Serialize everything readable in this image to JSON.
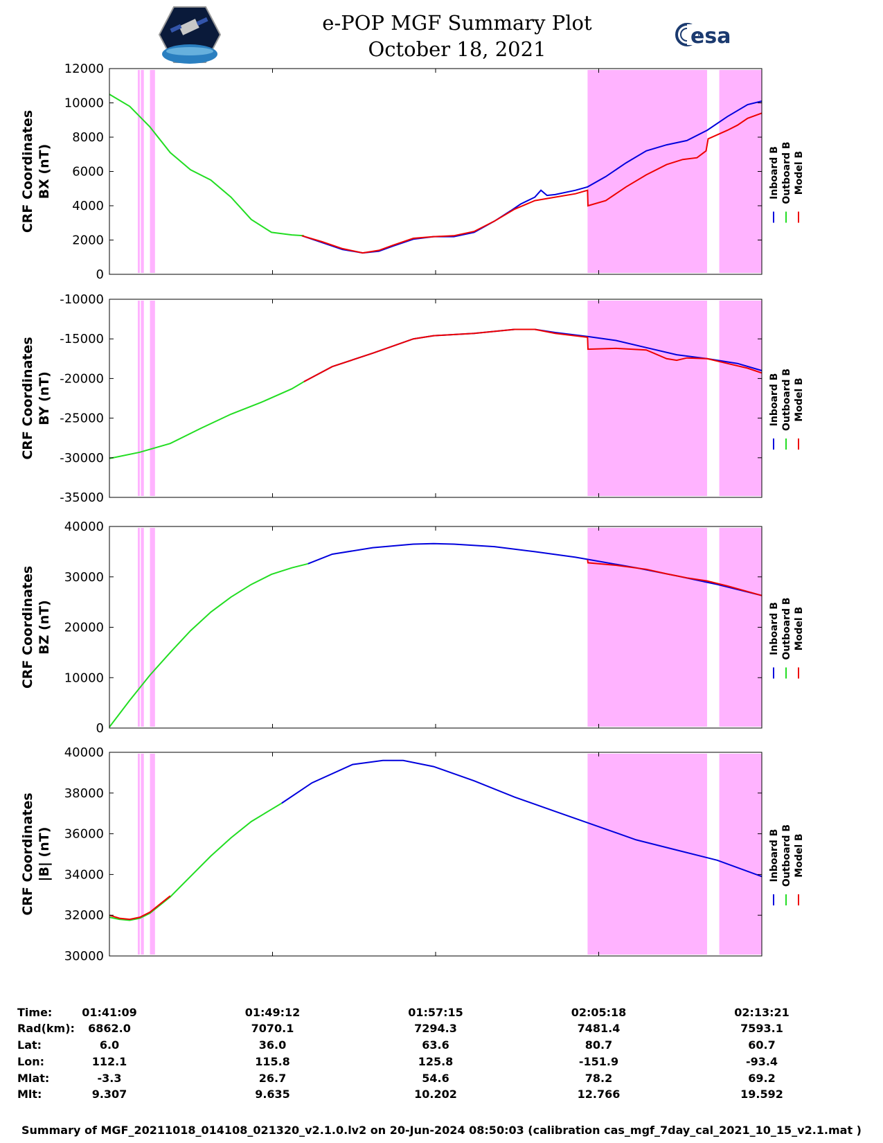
{
  "header": {
    "title": "e-POP MGF Summary Plot",
    "date": "October 18, 2021",
    "left_logo": "cassiope-satellite-logo",
    "right_logo": "esa-logo",
    "right_logo_text": "esa"
  },
  "colors": {
    "inboard": "#0000dd",
    "outboard": "#22dd22",
    "model": "#ee0000",
    "highlight": "#ffb3ff"
  },
  "legend": [
    "Inboard B",
    "Outboard B",
    "Model B"
  ],
  "chart_data": [
    {
      "type": "line",
      "ylabel": [
        "CRF Coordinates",
        "BX (nT)"
      ],
      "ylim": [
        0,
        12000
      ],
      "yticks": [
        0,
        2000,
        4000,
        6000,
        8000,
        10000,
        12000
      ],
      "x_range_minutes": [
        0,
        32.2
      ],
      "shaded_intervals_minutes": [
        [
          1.4,
          1.5
        ],
        [
          1.55,
          1.7
        ],
        [
          2.0,
          2.25
        ],
        [
          23.6,
          29.5
        ],
        [
          30.1,
          32.2
        ]
      ],
      "series": [
        {
          "name": "Inboard B",
          "x": [
            9.5,
            10.5,
            11.5,
            12.5,
            13.3,
            14.0,
            15.0,
            16.0,
            17.0,
            18.0,
            19.0,
            19.8,
            20.3,
            21.0,
            21.3,
            21.6,
            22.0,
            23.0,
            23.6,
            24.5,
            25.5,
            26.5,
            27.5,
            28.5,
            29.5,
            30.5,
            31.5,
            32.2
          ],
          "y": [
            2250,
            1850,
            1450,
            1250,
            1350,
            1650,
            2050,
            2200,
            2200,
            2450,
            3100,
            3700,
            4100,
            4500,
            4900,
            4600,
            4650,
            4900,
            5100,
            5700,
            6500,
            7200,
            7550,
            7800,
            8400,
            9200,
            9900,
            10100
          ]
        },
        {
          "name": "Outboard B",
          "x": [
            0,
            1.0,
            2.0,
            3.0,
            4.0,
            5.0,
            6.0,
            7.0,
            8.0,
            9.0,
            9.6
          ],
          "y": [
            10500,
            9800,
            8600,
            7100,
            6100,
            5500,
            4500,
            3200,
            2450,
            2300,
            2250
          ]
        },
        {
          "name": "Model B",
          "x": [
            9.5,
            10.5,
            11.5,
            12.5,
            13.3,
            14.0,
            15.0,
            16.0,
            17.0,
            18.0,
            19.0,
            20.0,
            21.0,
            22.0,
            23.0,
            23.6,
            23.62,
            24.5,
            25.5,
            26.5,
            27.5,
            28.3,
            29.0,
            29.45,
            29.55,
            30.5,
            31.0,
            31.5,
            32.2
          ],
          "y": [
            2250,
            1900,
            1500,
            1250,
            1400,
            1700,
            2100,
            2200,
            2250,
            2500,
            3100,
            3800,
            4300,
            4500,
            4700,
            4900,
            4000,
            4300,
            5100,
            5800,
            6400,
            6700,
            6800,
            7200,
            7900,
            8400,
            8700,
            9100,
            9400
          ]
        }
      ]
    },
    {
      "type": "line",
      "ylabel": [
        "CRF Coordinates",
        "BY (nT)"
      ],
      "ylim": [
        -35000,
        -10000
      ],
      "yticks": [
        -35000,
        -30000,
        -25000,
        -20000,
        -15000,
        -10000
      ],
      "x_range_minutes": [
        0,
        32.2
      ],
      "shaded_intervals_minutes": [
        [
          1.4,
          1.5
        ],
        [
          1.55,
          1.7
        ],
        [
          2.0,
          2.25
        ],
        [
          23.6,
          29.5
        ],
        [
          30.1,
          32.2
        ]
      ],
      "series": [
        {
          "name": "Inboard B",
          "x": [
            9.6,
            11.0,
            13.0,
            15.0,
            16.0,
            18.0,
            20.0,
            21.0,
            22.0,
            23.6,
            25.0,
            26.5,
            28.0,
            29.5,
            31.0,
            32.2
          ],
          "y": [
            -20400,
            -18500,
            -16800,
            -15000,
            -14600,
            -14300,
            -13800,
            -13800,
            -14200,
            -14700,
            -15200,
            -16100,
            -17000,
            -17500,
            -18100,
            -19000
          ]
        },
        {
          "name": "Outboard B",
          "x": [
            0,
            1.5,
            3.0,
            4.5,
            6.0,
            7.5,
            9.0,
            9.6
          ],
          "y": [
            -30100,
            -29300,
            -28200,
            -26300,
            -24500,
            -23000,
            -21300,
            -20400
          ]
        },
        {
          "name": "Model B",
          "x": [
            9.6,
            11.0,
            13.0,
            15.0,
            16.0,
            18.0,
            20.0,
            21.0,
            22.0,
            23.6,
            23.62,
            25.0,
            26.5,
            27.5,
            28.0,
            28.5,
            29.5,
            30.5,
            31.5,
            32.2
          ],
          "y": [
            -20400,
            -18500,
            -16800,
            -15000,
            -14600,
            -14300,
            -13800,
            -13800,
            -14300,
            -14800,
            -16300,
            -16200,
            -16400,
            -17500,
            -17700,
            -17400,
            -17500,
            -18100,
            -18700,
            -19300
          ]
        }
      ]
    },
    {
      "type": "line",
      "ylabel": [
        "CRF Coordinates",
        "BZ (nT)"
      ],
      "ylim": [
        0,
        40000
      ],
      "yticks": [
        0,
        10000,
        20000,
        30000,
        40000
      ],
      "x_range_minutes": [
        0,
        32.2
      ],
      "shaded_intervals_minutes": [
        [
          1.4,
          1.5
        ],
        [
          1.55,
          1.7
        ],
        [
          2.0,
          2.25
        ],
        [
          23.6,
          29.5
        ],
        [
          30.1,
          32.2
        ]
      ],
      "series": [
        {
          "name": "Inboard B",
          "x": [
            9.8,
            11.0,
            13.0,
            15.0,
            16.0,
            17.0,
            19.0,
            21.0,
            23.0,
            24.0,
            26.0,
            28.0,
            30.0,
            32.2
          ],
          "y": [
            32600,
            34500,
            35800,
            36500,
            36600,
            36500,
            36000,
            35000,
            33900,
            33200,
            31800,
            30200,
            28500,
            26300
          ]
        },
        {
          "name": "Outboard B",
          "x": [
            0,
            1.0,
            2.0,
            3.0,
            4.0,
            5.0,
            6.0,
            7.0,
            8.0,
            9.0,
            9.8
          ],
          "y": [
            200,
            5500,
            10500,
            15000,
            19300,
            23000,
            26000,
            28500,
            30500,
            31800,
            32600
          ]
        },
        {
          "name": "Model B",
          "x": [
            23.6,
            23.62,
            25.0,
            26.5,
            27.5,
            28.5,
            29.5,
            30.5,
            32.2
          ],
          "y": [
            33400,
            32800,
            32300,
            31500,
            30600,
            29800,
            29200,
            28200,
            26300
          ]
        }
      ]
    },
    {
      "type": "line",
      "ylabel": [
        "CRF Coordinates",
        "|B| (nT)"
      ],
      "ylim": [
        30000,
        40000
      ],
      "yticks": [
        30000,
        32000,
        34000,
        36000,
        38000,
        40000
      ],
      "x_range_minutes": [
        0,
        32.2
      ],
      "shaded_intervals_minutes": [
        [
          1.4,
          1.5
        ],
        [
          1.55,
          1.7
        ],
        [
          2.0,
          2.25
        ],
        [
          23.6,
          29.5
        ],
        [
          30.1,
          32.2
        ]
      ],
      "series": [
        {
          "name": "Inboard B",
          "x": [
            8.5,
            10.0,
            12.0,
            13.5,
            14.5,
            16.0,
            18.0,
            20.0,
            22.0,
            24.0,
            26.0,
            28.0,
            30.0,
            32.2
          ],
          "y": [
            37500,
            38500,
            39400,
            39600,
            39600,
            39300,
            38600,
            37800,
            37100,
            36400,
            35700,
            35200,
            34700,
            33900
          ]
        },
        {
          "name": "Outboard B",
          "x": [
            0,
            0.5,
            1.0,
            1.5,
            2.0,
            3.0,
            4.0,
            5.0,
            6.0,
            7.0,
            8.0,
            8.5
          ],
          "y": [
            31900,
            31800,
            31750,
            31850,
            32100,
            32900,
            33900,
            34900,
            35800,
            36600,
            37200,
            37500
          ]
        },
        {
          "name": "Model B",
          "x": [
            0,
            0.5,
            1.0,
            1.5,
            2.0,
            3.0
          ],
          "y": [
            32000,
            31850,
            31800,
            31900,
            32150,
            32950
          ]
        }
      ]
    }
  ],
  "orbit_table": {
    "row_labels": [
      "Time:",
      "Rad(km):",
      "Lat:",
      "Lon:",
      "Mlat:",
      "Mlt:"
    ],
    "columns": [
      {
        "Time": "01:41:09",
        "Rad": "6862.0",
        "Lat": "6.0",
        "Lon": "112.1",
        "Mlat": "-3.3",
        "Mlt": "9.307"
      },
      {
        "Time": "01:49:12",
        "Rad": "7070.1",
        "Lat": "36.0",
        "Lon": "115.8",
        "Mlat": "26.7",
        "Mlt": "9.635"
      },
      {
        "Time": "01:57:15",
        "Rad": "7294.3",
        "Lat": "63.6",
        "Lon": "125.8",
        "Mlat": "54.6",
        "Mlt": "10.202"
      },
      {
        "Time": "02:05:18",
        "Rad": "7481.4",
        "Lat": "80.7",
        "Lon": "-151.9",
        "Mlat": "78.2",
        "Mlt": "12.766"
      },
      {
        "Time": "02:13:21",
        "Rad": "7593.1",
        "Lat": "60.7",
        "Lon": "-93.4",
        "Mlat": "69.2",
        "Mlt": "19.592"
      }
    ]
  },
  "footer": "Summary of MGF_20211018_014108_021320_v2.1.0.lv2 on 20-Jun-2024 08:50:03 (calibration cas_mgf_7day_cal_2021_10_15_v2.1.mat )"
}
